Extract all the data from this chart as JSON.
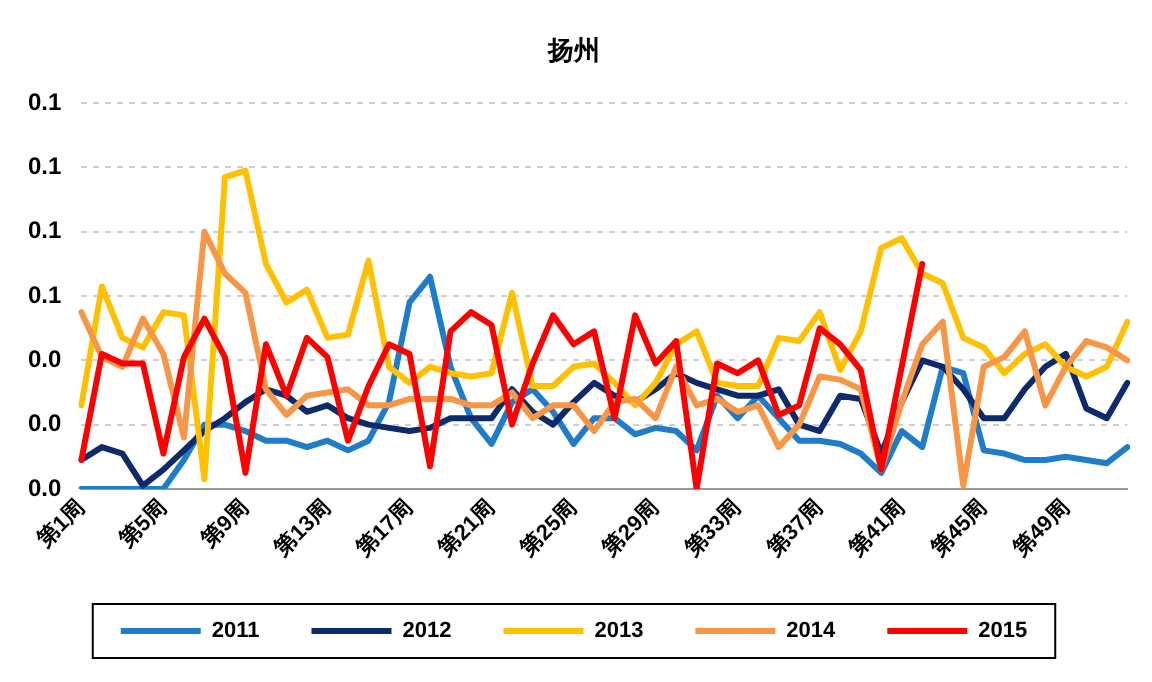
{
  "chart_data": {
    "type": "line",
    "title": "扬州",
    "categories": [
      "第1周",
      null,
      null,
      null,
      "第5周",
      null,
      null,
      null,
      "第9周",
      null,
      null,
      null,
      "第13周",
      null,
      null,
      null,
      "第17周",
      null,
      null,
      null,
      "第21周",
      null,
      null,
      null,
      "第25周",
      null,
      null,
      null,
      "第29周",
      null,
      null,
      null,
      "第33周",
      null,
      null,
      null,
      "第37周",
      null,
      null,
      null,
      "第41周",
      null,
      null,
      null,
      "第45周",
      null,
      null,
      null,
      "第49周",
      null,
      null,
      null
    ],
    "series": [
      {
        "name": "2011",
        "color": "#1f7cc8",
        "values": [
          0,
          0,
          0,
          0,
          0,
          0.009,
          0.02,
          0.02,
          0.018,
          0.015,
          0.015,
          0.013,
          0.015,
          0.012,
          0.015,
          0.027,
          0.058,
          0.066,
          0.038,
          0.022,
          0.014,
          0.027,
          0.031,
          0.024,
          0.014,
          0.022,
          0.022,
          0.017,
          0.019,
          0.018,
          0.012,
          0.029,
          0.022,
          0.029,
          0.022,
          0.015,
          0.015,
          0.014,
          0.011,
          0.005,
          0.018,
          0.013,
          0.038,
          0.036,
          0.012,
          0.011,
          0.009,
          0.009,
          0.01,
          0.009,
          0.008,
          0.013
        ]
      },
      {
        "name": "2012",
        "color": "#0d2a6b",
        "values": [
          0.009,
          0.013,
          0.011,
          0.001,
          0.006,
          0.012,
          0.018,
          0.022,
          0.027,
          0.031,
          0.029,
          0.024,
          0.026,
          0.022,
          0.02,
          0.019,
          0.018,
          0.019,
          0.022,
          0.022,
          0.022,
          0.031,
          0.024,
          0.02,
          0.027,
          0.033,
          0.029,
          0.027,
          0.031,
          0.036,
          0.033,
          0.031,
          0.029,
          0.029,
          0.031,
          0.02,
          0.018,
          0.029,
          0.028,
          0.011,
          0.027,
          0.04,
          0.038,
          0.031,
          0.022,
          0.022,
          0.031,
          0.038,
          0.042,
          0.025,
          0.022,
          0.033
        ]
      },
      {
        "name": "2013",
        "color": "#ffc000",
        "values": [
          0.026,
          0.063,
          0.047,
          0.044,
          0.055,
          0.054,
          0.003,
          0.097,
          0.099,
          0.07,
          0.058,
          0.062,
          0.047,
          0.048,
          0.071,
          0.038,
          0.033,
          0.038,
          0.036,
          0.035,
          0.036,
          0.061,
          0.032,
          0.032,
          0.038,
          0.039,
          0.033,
          0.026,
          0.033,
          0.045,
          0.049,
          0.033,
          0.032,
          0.032,
          0.047,
          0.046,
          0.055,
          0.037,
          0.049,
          0.075,
          0.078,
          0.067,
          0.064,
          0.047,
          0.044,
          0.036,
          0.042,
          0.045,
          0.038,
          0.035,
          0.038,
          0.052
        ]
      },
      {
        "name": "2014",
        "color": "#f79646",
        "values": [
          0.055,
          0.041,
          0.038,
          0.053,
          0.042,
          0.016,
          0.08,
          0.067,
          0.061,
          0.031,
          0.023,
          0.029,
          0.03,
          0.031,
          0.026,
          0.026,
          0.028,
          0.028,
          0.028,
          0.026,
          0.026,
          0.03,
          0.022,
          0.026,
          0.026,
          0.018,
          0.027,
          0.028,
          0.022,
          0.038,
          0.026,
          0.028,
          0.024,
          0.026,
          0.013,
          0.02,
          0.035,
          0.034,
          0.031,
          0.006,
          0.027,
          0.045,
          0.052,
          0.001,
          0.038,
          0.041,
          0.049,
          0.026,
          0.038,
          0.046,
          0.044,
          0.04
        ]
      },
      {
        "name": "2015",
        "color": "#ff0000",
        "values": [
          0.009,
          0.042,
          0.039,
          0.039,
          0.011,
          0.041,
          0.053,
          0.041,
          0.005,
          0.045,
          0.029,
          0.047,
          0.041,
          0.015,
          0.032,
          0.045,
          0.042,
          0.007,
          0.049,
          0.055,
          0.051,
          0.02,
          0.039,
          0.054,
          0.045,
          0.049,
          0.022,
          0.054,
          0.039,
          0.046,
          0,
          0.039,
          0.036,
          0.04,
          0.023,
          0.026,
          0.05,
          0.045,
          0.037,
          0.006,
          0.038,
          0.07,
          null,
          null,
          null,
          null,
          null,
          null,
          null,
          null,
          null,
          null
        ]
      }
    ],
    "ylim": [
      0,
      0.12
    ],
    "yticks": [
      {
        "value": 0,
        "label": "0.0"
      },
      {
        "value": 0.02,
        "label": "0.0"
      },
      {
        "value": 0.04,
        "label": "0.0"
      },
      {
        "value": 0.06,
        "label": "0.1"
      },
      {
        "value": 0.08,
        "label": "0.1"
      },
      {
        "value": 0.1,
        "label": "0.1"
      },
      {
        "value": 0.12,
        "label": "0.1"
      }
    ],
    "grid": "y",
    "legend": "bottom",
    "marker": "none",
    "line_style": "solid"
  }
}
